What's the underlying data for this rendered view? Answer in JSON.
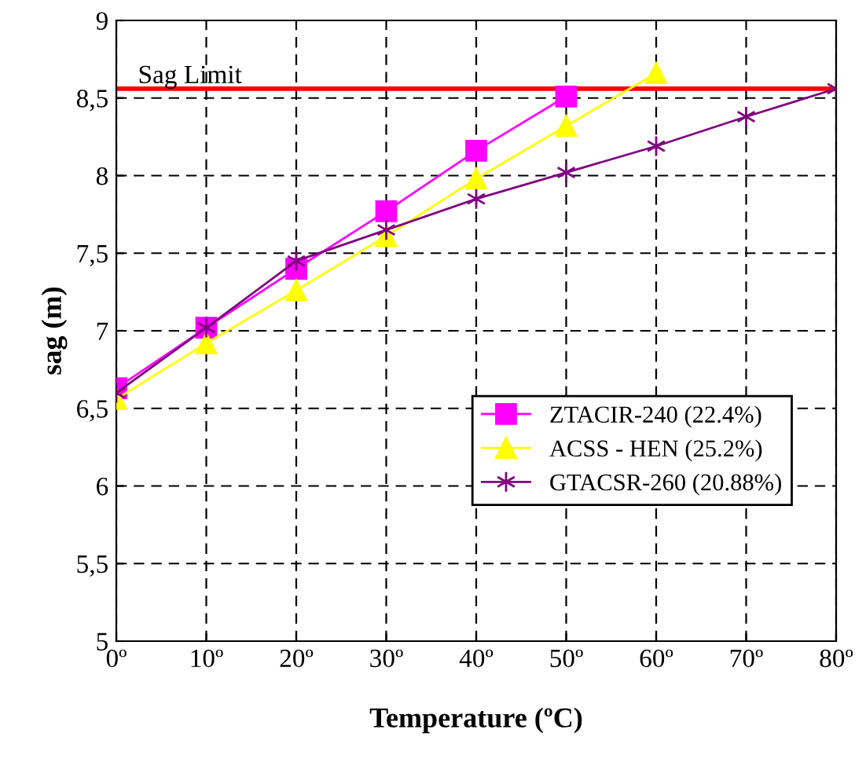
{
  "chart_data": {
    "type": "line",
    "xlabel": "Temperature (ºC)",
    "ylabel": "sag (m)",
    "x": [
      0,
      10,
      20,
      30,
      40,
      50,
      60,
      70,
      80
    ],
    "series": [
      {
        "name": "ZTACIR-240 (22.4%)",
        "color": "#ff00ff",
        "marker": "square",
        "values": [
          6.63,
          7.02,
          7.4,
          7.77,
          8.16,
          8.51,
          null,
          null,
          null
        ]
      },
      {
        "name": "ACSS - HEN (25.2%)",
        "color": "#ffff00",
        "marker": "triangle",
        "values": [
          6.56,
          6.92,
          7.26,
          7.61,
          7.98,
          8.32,
          8.66,
          null,
          null
        ]
      },
      {
        "name": "GTACSR-260 (20.88%)",
        "color": "#800080",
        "marker": "cross",
        "values": [
          6.6,
          7.02,
          7.45,
          7.65,
          7.85,
          8.02,
          8.19,
          8.38,
          8.56
        ]
      }
    ],
    "xlim": [
      0,
      80
    ],
    "xticks": [
      {
        "value": 0,
        "label": "0º"
      },
      {
        "value": 10,
        "label": "10º"
      },
      {
        "value": 20,
        "label": "20º"
      },
      {
        "value": 30,
        "label": "30º"
      },
      {
        "value": 40,
        "label": "40º"
      },
      {
        "value": 50,
        "label": "50º"
      },
      {
        "value": 60,
        "label": "60º"
      },
      {
        "value": 70,
        "label": "70º"
      },
      {
        "value": 80,
        "label": "80º"
      }
    ],
    "ylim": [
      5,
      9
    ],
    "yticks": [
      5,
      {
        "value": 5.5,
        "label": "5,5"
      },
      6,
      {
        "value": 6.5,
        "label": "6,5"
      },
      7,
      {
        "value": 7.5,
        "label": "7,5"
      },
      8,
      {
        "value": 8.5,
        "label": "8,5"
      },
      9
    ],
    "ref_lines": [
      {
        "axis": "y",
        "value": 8.56,
        "label": "Sag Limit",
        "color": "#ff0000",
        "line_style": "solid"
      }
    ],
    "grid": true,
    "line_style": "solid",
    "legend": "bottom right"
  }
}
